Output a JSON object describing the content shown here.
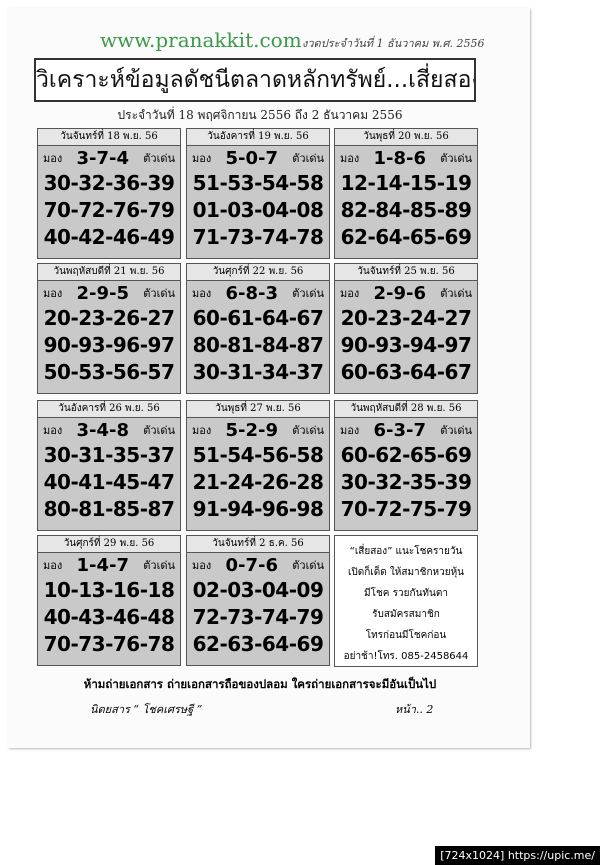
{
  "header": {
    "site": "www.pranakkit.com",
    "issue": "งวดประจำวันที่ 1 ธันวาคม พ.ศ. 2556"
  },
  "title": "วิเคราะห์ข้อมูลดัชนีตลาดหลักทรัพย์...เสี่ยสอง",
  "subtitle": "ประจำวันที่ 18 พฤศจิกายน 2556 ถึง 2 ธันวาคม 2556",
  "cards": [
    {
      "day": "วันจันทร์ที่ 18 พ.ย. 56",
      "label": "มอง",
      "main": "3-7-4",
      "tag": "ตัวเด่น",
      "lines": [
        "30-32-36-39",
        "70-72-76-79",
        "40-42-46-49"
      ]
    },
    {
      "day": "วันอังคารที่ 19 พ.ย. 56",
      "label": "มอง",
      "main": "5-0-7",
      "tag": "ตัวเด่น",
      "lines": [
        "51-53-54-58",
        "01-03-04-08",
        "71-73-74-78"
      ]
    },
    {
      "day": "วันพุธที่ 20 พ.ย. 56",
      "label": "มอง",
      "main": "1-8-6",
      "tag": "ตัวเด่น",
      "lines": [
        "12-14-15-19",
        "82-84-85-89",
        "62-64-65-69"
      ]
    },
    {
      "day": "วันพฤหัสบดีที่ 21 พ.ย. 56",
      "label": "มอง",
      "main": "2-9-5",
      "tag": "ตัวเด่น",
      "lines": [
        "20-23-26-27",
        "90-93-96-97",
        "50-53-56-57"
      ]
    },
    {
      "day": "วันศุกร์ที่ 22 พ.ย. 56",
      "label": "มอง",
      "main": "6-8-3",
      "tag": "ตัวเด่น",
      "lines": [
        "60-61-64-67",
        "80-81-84-87",
        "30-31-34-37"
      ]
    },
    {
      "day": "วันจันทร์ที่ 25 พ.ย. 56",
      "label": "มอง",
      "main": "2-9-6",
      "tag": "ตัวเด่น",
      "lines": [
        "20-23-24-27",
        "90-93-94-97",
        "60-63-64-67"
      ]
    },
    {
      "day": "วันอังคารที่ 26 พ.ย. 56",
      "label": "มอง",
      "main": "3-4-8",
      "tag": "ตัวเด่น",
      "lines": [
        "30-31-35-37",
        "40-41-45-47",
        "80-81-85-87"
      ]
    },
    {
      "day": "วันพุธที่ 27 พ.ย. 56",
      "label": "มอง",
      "main": "5-2-9",
      "tag": "ตัวเด่น",
      "lines": [
        "51-54-56-58",
        "21-24-26-28",
        "91-94-96-98"
      ]
    },
    {
      "day": "วันพฤหัสบดีที่ 28 พ.ย. 56",
      "label": "มอง",
      "main": "6-3-7",
      "tag": "ตัวเด่น",
      "lines": [
        "60-62-65-69",
        "30-32-35-39",
        "70-72-75-79"
      ]
    },
    {
      "day": "วันศุกร์ที่ 29 พ.ย. 56",
      "label": "มอง",
      "main": "1-4-7",
      "tag": "ตัวเด่น",
      "lines": [
        "10-13-16-18",
        "40-43-46-48",
        "70-73-76-78"
      ]
    },
    {
      "day": "วันจันทร์ที่ 2 ธ.ค. 56",
      "label": "มอง",
      "main": "0-7-6",
      "tag": "ตัวเด่น",
      "lines": [
        "02-03-04-09",
        "72-73-74-79",
        "62-63-64-69"
      ]
    }
  ],
  "promo": [
    "“เสี่ยสอง” แนะโชครายวัน",
    "เปิดก็เด็ด ให้สมาชิกหวยหุ้น",
    "มีโชค รวยกันทันตา",
    "รับสมัครสมาชิก",
    "โทรก่อนมีโชคก่อน",
    "อย่าช้า!โทร. 085-2458644"
  ],
  "warning": "ห้ามถ่ายเอกสาร ถ่ายเอกสารถือของปลอม ใครถ่ายเอกสารจะมีอันเป็นไป",
  "footer": {
    "magazine": "นิตยสาร “ โชคเศรษฐี ”",
    "page": "หน้า.. 2"
  },
  "watermark": "[724x1024] https://upic.me/"
}
